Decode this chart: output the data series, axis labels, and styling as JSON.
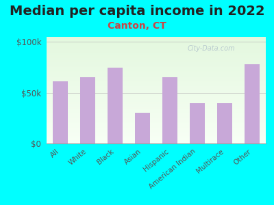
{
  "title": "Median per capita income in 2022",
  "subtitle": "Canton, CT",
  "categories": [
    "All",
    "White",
    "Black",
    "Asian",
    "Hispanic",
    "American Indian",
    "Multirace",
    "Other"
  ],
  "values": [
    61000,
    65000,
    75000,
    30000,
    65000,
    40000,
    40000,
    78000
  ],
  "bar_color": "#c8a8d8",
  "background_outer": "#00ffff",
  "yticks": [
    0,
    50000,
    100000
  ],
  "ytick_labels": [
    "$0",
    "$50k",
    "$100k"
  ],
  "ylim": [
    0,
    105000
  ],
  "title_fontsize": 14,
  "subtitle_fontsize": 10,
  "subtitle_color": "#cc4444",
  "tick_label_color": "#555555",
  "watermark": "City-Data.com",
  "title_color": "#222222"
}
